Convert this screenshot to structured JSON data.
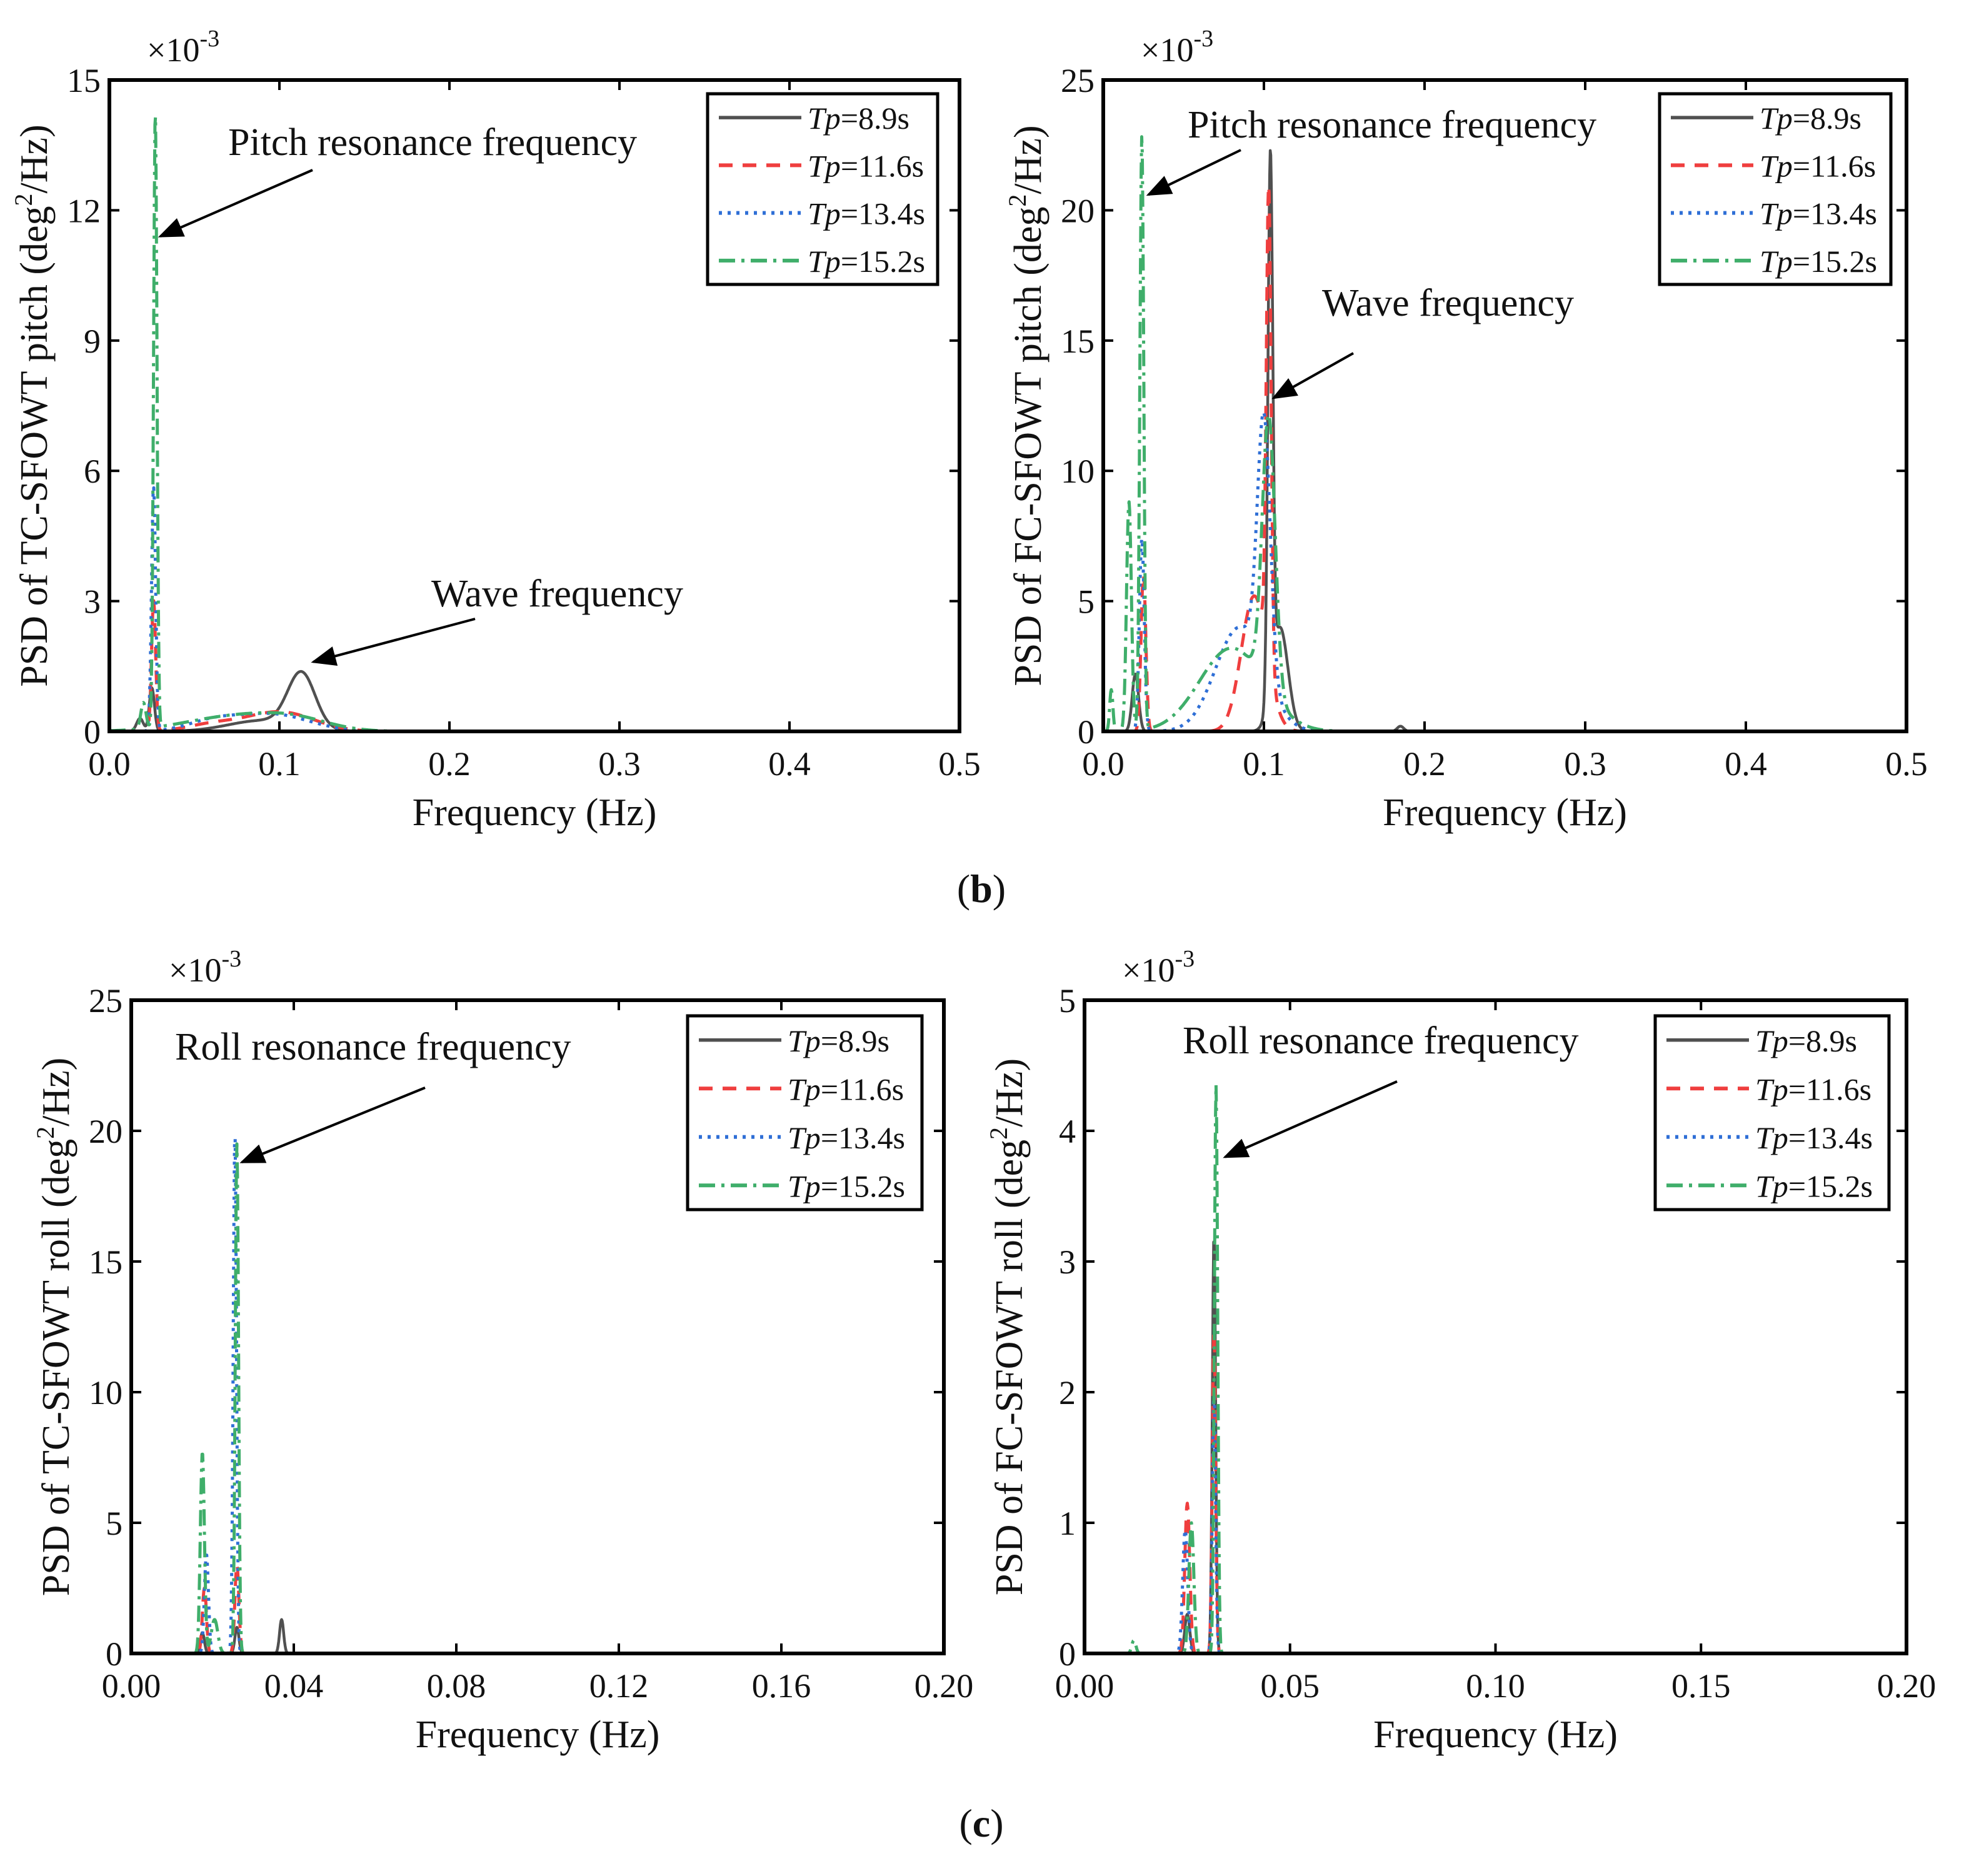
{
  "figure": {
    "captions": [
      {
        "open": "(",
        "letter": "b",
        "close": ")"
      },
      {
        "open": "(",
        "letter": "c",
        "close": ")"
      }
    ]
  },
  "colors": {
    "s1": "#505050",
    "s2": "#ef3e3e",
    "s3": "#2f6fd6",
    "s4": "#3fae6a"
  },
  "chart_data": [
    {
      "id": "tc-pitch",
      "type": "line",
      "title": "",
      "ylabel": "PSD of TC-SFOWT pitch (deg²/Hz)",
      "ylabel_parts": [
        "PSD of TC-SFOWT pitch (deg",
        "2",
        "/Hz)"
      ],
      "xlabel": "Frequency (Hz)",
      "y_multiplier": {
        "base": "×10",
        "exp": "-3"
      },
      "xlim": [
        0,
        0.5
      ],
      "ylim": [
        0,
        15
      ],
      "xticks": [
        0,
        0.1,
        0.2,
        0.3,
        0.4,
        0.5
      ],
      "xtick_labels": [
        "0.0",
        "0.1",
        "0.2",
        "0.3",
        "0.4",
        "0.5"
      ],
      "yticks": [
        0,
        3,
        6,
        9,
        12,
        15
      ],
      "ytick_labels": [
        "0",
        "3",
        "6",
        "9",
        "12",
        "15"
      ],
      "legend": [
        "Tp=8.9s",
        "Tp=11.6s",
        "Tp=13.4s",
        "Tp=15.2s"
      ],
      "annotations": [
        {
          "text": "Pitch resonance frequency",
          "target": [
            0.027,
            11.4
          ]
        },
        {
          "text": "Wave frequency",
          "target": [
            0.117,
            1.6
          ]
        }
      ],
      "series": [
        {
          "name": "Tp=8.9s",
          "peaks": [
            [
              0.018,
              0.3,
              0.002
            ],
            [
              0.025,
              1.0,
              0.0015
            ],
            [
              0.113,
              1.25,
              0.008
            ],
            [
              0.09,
              0.25,
              0.02
            ]
          ]
        },
        {
          "name": "Tp=11.6s",
          "peaks": [
            [
              0.026,
              3.0,
              0.0012
            ],
            [
              0.1,
              0.45,
              0.02
            ],
            [
              0.06,
              0.15,
              0.015
            ]
          ]
        },
        {
          "name": "Tp=13.4s",
          "peaks": [
            [
              0.026,
              5.6,
              0.0012
            ],
            [
              0.095,
              0.4,
              0.022
            ],
            [
              0.06,
              0.2,
              0.015
            ]
          ]
        },
        {
          "name": "Tp=15.2s",
          "peaks": [
            [
              0.027,
              14.2,
              0.001
            ],
            [
              0.02,
              0.6,
              0.0015
            ],
            [
              0.075,
              0.35,
              0.03
            ],
            [
              0.11,
              0.2,
              0.02
            ]
          ]
        }
      ]
    },
    {
      "id": "fc-pitch",
      "type": "line",
      "title": "",
      "ylabel": "PSD of FC-SFOWT pitch (deg²/Hz)",
      "ylabel_parts": [
        "PSD of FC-SFOWT pitch (deg",
        "2",
        "/Hz)"
      ],
      "xlabel": "Frequency (Hz)",
      "y_multiplier": {
        "base": "×10",
        "exp": "-3"
      },
      "xlim": [
        0,
        0.5
      ],
      "ylim": [
        0,
        25
      ],
      "xticks": [
        0,
        0.1,
        0.2,
        0.3,
        0.4,
        0.5
      ],
      "xtick_labels": [
        "0.0",
        "0.1",
        "0.2",
        "0.3",
        "0.4",
        "0.5"
      ],
      "yticks": [
        0,
        5,
        10,
        15,
        20,
        25
      ],
      "ytick_labels": [
        "0",
        "5",
        "10",
        "15",
        "20",
        "25"
      ],
      "legend": [
        "Tp=8.9s",
        "Tp=11.6s",
        "Tp=13.4s",
        "Tp=15.2s"
      ],
      "annotations": [
        {
          "text": "Pitch resonance frequency",
          "target": [
            0.025,
            20.6
          ]
        },
        {
          "text": "Wave frequency",
          "target": [
            0.103,
            12.8
          ]
        }
      ],
      "series": [
        {
          "name": "Tp=8.9s",
          "peaks": [
            [
              0.104,
              20.4,
              0.0015
            ],
            [
              0.11,
              4.0,
              0.005
            ],
            [
              0.02,
              2.2,
              0.002
            ],
            [
              0.185,
              0.2,
              0.002
            ]
          ]
        },
        {
          "name": "Tp=11.6s",
          "peaks": [
            [
              0.103,
              18.2,
              0.0015
            ],
            [
              0.094,
              5.2,
              0.008
            ],
            [
              0.025,
              6.0,
              0.0015
            ]
          ]
        },
        {
          "name": "Tp=13.4s",
          "peaks": [
            [
              0.024,
              7.4,
              0.0015
            ],
            [
              0.1,
              9.8,
              0.004
            ],
            [
              0.085,
              4.0,
              0.015
            ]
          ]
        },
        {
          "name": "Tp=15.2s",
          "peaks": [
            [
              0.024,
              22.8,
              0.0012
            ],
            [
              0.016,
              8.8,
              0.0015
            ],
            [
              0.005,
              1.6,
              0.001
            ],
            [
              0.103,
              10.5,
              0.004
            ],
            [
              0.08,
              3.2,
              0.02
            ]
          ]
        }
      ]
    },
    {
      "id": "tc-roll",
      "type": "line",
      "title": "",
      "ylabel": "PSD of TC-SFOWT roll (deg²/Hz)",
      "ylabel_parts": [
        "PSD of TC-SFOWT roll (deg",
        "2",
        "/Hz)"
      ],
      "xlabel": "Frequency (Hz)",
      "y_multiplier": {
        "base": "×10",
        "exp": "-3"
      },
      "xlim": [
        0,
        0.2
      ],
      "ylim": [
        0,
        25
      ],
      "xticks": [
        0,
        0.04,
        0.08,
        0.12,
        0.16,
        0.2
      ],
      "xtick_labels": [
        "0.00",
        "0.04",
        "0.08",
        "0.12",
        "0.16",
        "0.20"
      ],
      "yticks": [
        0,
        5,
        10,
        15,
        20,
        25
      ],
      "ytick_labels": [
        "0",
        "5",
        "10",
        "15",
        "20",
        "25"
      ],
      "legend": [
        "Tp=8.9s",
        "Tp=11.6s",
        "Tp=13.4s",
        "Tp=15.2s"
      ],
      "annotations": [
        {
          "text": "Roll resonance frequency",
          "target": [
            0.026,
            18.8
          ]
        }
      ],
      "series": [
        {
          "name": "Tp=8.9s",
          "peaks": [
            [
              0.0175,
              0.8,
              0.0005
            ],
            [
              0.026,
              1.0,
              0.0005
            ],
            [
              0.037,
              1.3,
              0.0005
            ]
          ]
        },
        {
          "name": "Tp=11.6s",
          "peaks": [
            [
              0.018,
              2.5,
              0.0005
            ],
            [
              0.026,
              3.4,
              0.0005
            ]
          ]
        },
        {
          "name": "Tp=13.4s",
          "peaks": [
            [
              0.0185,
              3.8,
              0.0005
            ],
            [
              0.0255,
              20.0,
              0.0004
            ]
          ]
        },
        {
          "name": "Tp=15.2s",
          "peaks": [
            [
              0.0175,
              7.7,
              0.0005
            ],
            [
              0.026,
              19.5,
              0.0004
            ],
            [
              0.0205,
              1.3,
              0.0008
            ]
          ]
        }
      ]
    },
    {
      "id": "fc-roll",
      "type": "line",
      "title": "",
      "ylabel": "PSD of FC-SFOWT roll (deg²/Hz)",
      "ylabel_parts": [
        "PSD of FC-SFOWT roll (deg",
        "2",
        "/Hz)"
      ],
      "xlabel": "Frequency (Hz)",
      "y_multiplier": {
        "base": "×10",
        "exp": "-3"
      },
      "xlim": [
        0,
        0.2
      ],
      "ylim": [
        0,
        5
      ],
      "xticks": [
        0,
        0.05,
        0.1,
        0.15,
        0.2
      ],
      "xtick_labels": [
        "0.00",
        "0.05",
        "0.10",
        "0.15",
        "0.20"
      ],
      "yticks": [
        0,
        1,
        2,
        3,
        4,
        5
      ],
      "ytick_labels": [
        "0",
        "1",
        "2",
        "3",
        "4",
        "5"
      ],
      "legend": [
        "Tp=8.9s",
        "Tp=11.6s",
        "Tp=13.4s",
        "Tp=15.2s"
      ],
      "annotations": [
        {
          "text": "Roll resonance frequency",
          "target": [
            0.033,
            3.8
          ]
        }
      ],
      "series": [
        {
          "name": "Tp=8.9s",
          "peaks": [
            [
              0.025,
              0.3,
              0.0006
            ],
            [
              0.0315,
              3.2,
              0.0004
            ]
          ]
        },
        {
          "name": "Tp=11.6s",
          "peaks": [
            [
              0.025,
              1.15,
              0.0006
            ],
            [
              0.0315,
              2.5,
              0.0004
            ]
          ]
        },
        {
          "name": "Tp=13.4s",
          "peaks": [
            [
              0.0245,
              0.95,
              0.0006
            ],
            [
              0.0315,
              2.0,
              0.0004
            ]
          ]
        },
        {
          "name": "Tp=15.2s",
          "peaks": [
            [
              0.026,
              1.0,
              0.0006
            ],
            [
              0.032,
              4.35,
              0.0004
            ],
            [
              0.012,
              0.1,
              0.0005
            ]
          ]
        }
      ]
    }
  ]
}
